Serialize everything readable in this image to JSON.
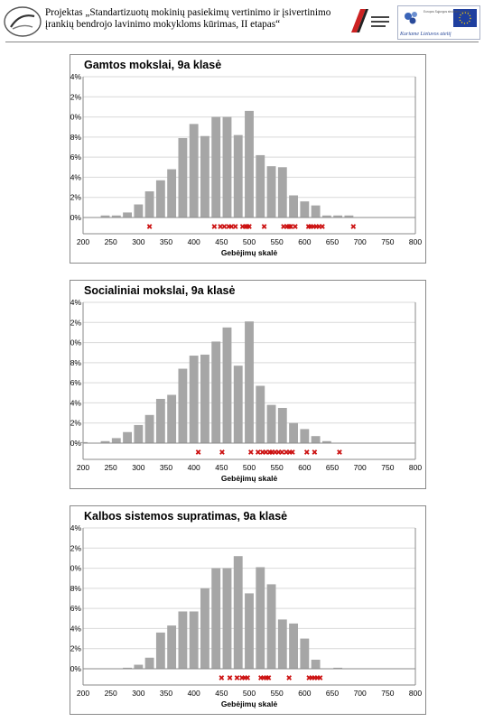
{
  "header": {
    "line1": "Projektas „Standartizuotų mokinių pasiekimų vertinimo ir įsivertinimo",
    "line2": "įrankių bendrojo lavinimo mokykloms kūrimas, II etapas“",
    "eu_logo_text": "Kuriame Lietuvos ateitį",
    "eu_logo_small": "Europos Sąjungos struktūrinių fondų"
  },
  "colors": {
    "bar": "#a6a6a6",
    "marker": "#cc1111",
    "grid": "#d9d9d9",
    "axis": "#8a8a8a"
  },
  "chart_data": [
    {
      "type": "bar",
      "title": "Gamtos mokslai, 9a klasė",
      "xlabel": "Gebėjimų skalė",
      "ylabel": "",
      "ylim": [
        0,
        14
      ],
      "xlim": [
        200,
        800
      ],
      "x_ticks": [
        "200",
        "250",
        "300",
        "350",
        "400",
        "450",
        "500",
        "550",
        "600",
        "650",
        "700",
        "750",
        "800"
      ],
      "y_ticks": [
        "0%",
        "2%",
        "4%",
        "6%",
        "8%",
        "10%",
        "12%",
        "14%"
      ],
      "grid": true,
      "bin_centers": [
        240,
        260,
        280,
        300,
        320,
        340,
        360,
        380,
        400,
        420,
        440,
        460,
        480,
        500,
        520,
        540,
        560,
        580,
        600,
        620,
        640,
        660,
        680,
        700,
        720,
        740,
        760,
        780
      ],
      "values": [
        0.2,
        0.2,
        0.5,
        1.3,
        2.6,
        3.7,
        4.8,
        7.9,
        9.3,
        8.1,
        10.0,
        10.0,
        8.2,
        10.6,
        6.2,
        5.1,
        5.0,
        2.2,
        1.6,
        1.2,
        0.2,
        0.2,
        0.2,
        0,
        0,
        0,
        0,
        0
      ],
      "markers": [
        320,
        437,
        448,
        455,
        463,
        468,
        475,
        488,
        493,
        496,
        500,
        527,
        562,
        568,
        572,
        575,
        583,
        607,
        611,
        616,
        621,
        626,
        632,
        688
      ]
    },
    {
      "type": "bar",
      "title": "Socialiniai mokslai, 9a klasė",
      "xlabel": "Gebėjimų skalė",
      "ylabel": "",
      "ylim": [
        0,
        14
      ],
      "xlim": [
        200,
        800
      ],
      "x_ticks": [
        "200",
        "250",
        "300",
        "350",
        "400",
        "450",
        "500",
        "550",
        "600",
        "650",
        "700",
        "750",
        "800"
      ],
      "y_ticks": [
        "0%",
        "2%",
        "4%",
        "6%",
        "8%",
        "10%",
        "12%",
        "14%"
      ],
      "grid": true,
      "bin_centers": [
        200,
        220,
        240,
        260,
        280,
        300,
        320,
        340,
        360,
        380,
        400,
        420,
        440,
        460,
        480,
        500,
        520,
        540,
        560,
        580,
        600,
        620,
        640,
        660,
        680,
        700,
        720,
        740,
        760,
        780
      ],
      "values": [
        0.1,
        0,
        0.2,
        0.5,
        1.1,
        1.8,
        2.8,
        4.4,
        4.8,
        7.4,
        8.7,
        8.8,
        10.1,
        11.5,
        7.7,
        12.1,
        5.7,
        3.8,
        3.5,
        2.0,
        1.4,
        0.7,
        0.2,
        0,
        0,
        0,
        0,
        0,
        0,
        0
      ],
      "markers": [
        408,
        451,
        503,
        516,
        524,
        530,
        537,
        541,
        547,
        553,
        559,
        567,
        573,
        578,
        604,
        618,
        663
      ]
    },
    {
      "type": "bar",
      "title": "Kalbos sistemos supratimas, 9a klasė",
      "xlabel": "Gebėjimų skalė",
      "ylabel": "",
      "ylim": [
        0,
        14
      ],
      "xlim": [
        200,
        800
      ],
      "x_ticks": [
        "200",
        "250",
        "300",
        "350",
        "400",
        "450",
        "500",
        "550",
        "600",
        "650",
        "700",
        "750",
        "800"
      ],
      "y_ticks": [
        "0%",
        "2%",
        "4%",
        "6%",
        "8%",
        "10%",
        "12%",
        "14%"
      ],
      "grid": true,
      "bin_centers": [
        280,
        300,
        320,
        340,
        360,
        380,
        400,
        420,
        440,
        460,
        480,
        500,
        520,
        540,
        560,
        580,
        600,
        620,
        640,
        660,
        680,
        700,
        720,
        740,
        760,
        780
      ],
      "values": [
        0.1,
        0.4,
        1.1,
        3.6,
        4.3,
        5.7,
        5.7,
        8.0,
        10.0,
        10.0,
        11.2,
        7.5,
        10.1,
        8.4,
        4.9,
        4.5,
        3.0,
        0.9,
        0,
        0.1,
        0,
        0,
        0,
        0,
        0,
        0
      ],
      "markers": [
        450,
        465,
        478,
        487,
        492,
        497,
        521,
        526,
        531,
        535,
        572,
        608,
        613,
        618,
        623,
        628
      ]
    }
  ]
}
